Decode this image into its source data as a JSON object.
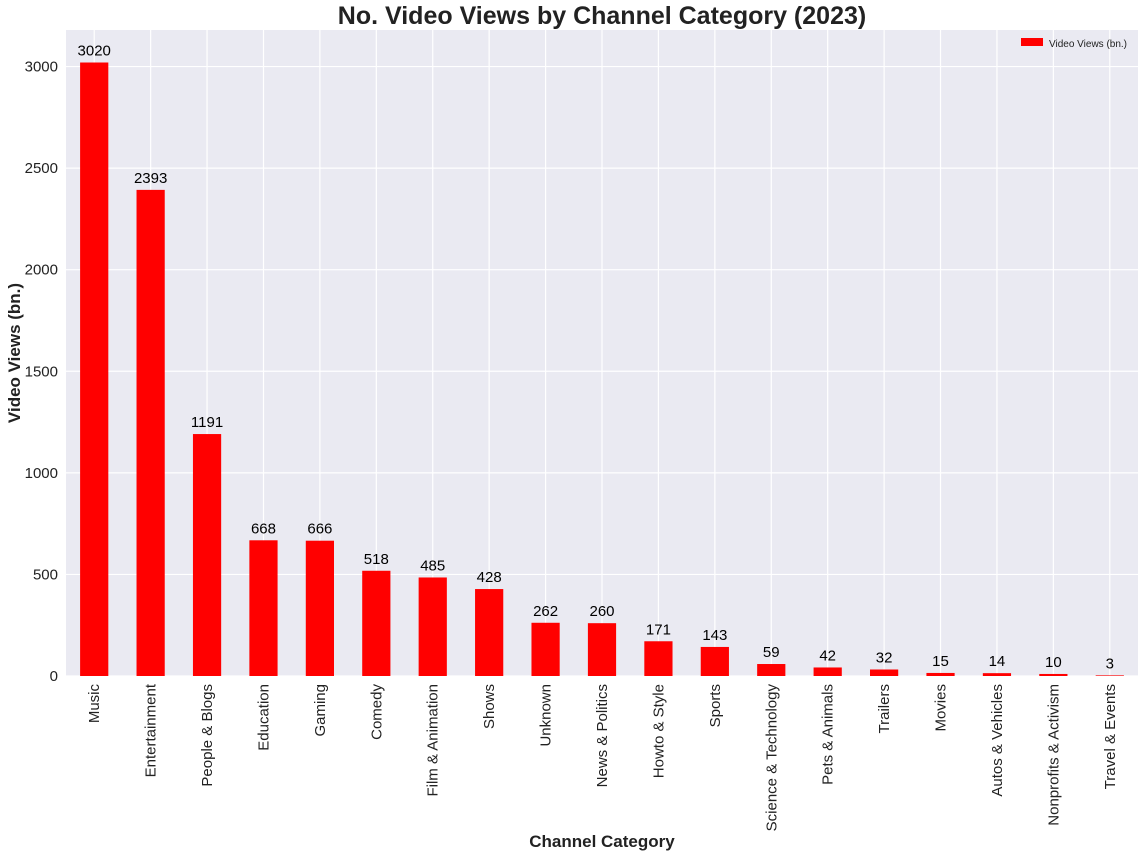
{
  "colors": {
    "bar": "#ff0000",
    "plot_background": "#eaeaf2",
    "grid": "#ffffff"
  },
  "chart_data": {
    "type": "bar",
    "title": "No. Video Views by Channel Category (2023)",
    "xlabel": "Channel Category",
    "ylabel": "Video Views (bn.)",
    "ylim": [
      0,
      3180
    ],
    "yticks": [
      0,
      500,
      1000,
      1500,
      2000,
      2500,
      3000
    ],
    "grid": true,
    "legend": {
      "position": "top-right",
      "entries": [
        "Video Views (bn.)"
      ]
    },
    "categories": [
      "Music",
      "Entertainment",
      "People & Blogs",
      "Education",
      "Gaming",
      "Comedy",
      "Film & Animation",
      "Shows",
      "Unknown",
      "News & Politics",
      "Howto & Style",
      "Sports",
      "Science & Technology",
      "Pets & Animals",
      "Trailers",
      "Movies",
      "Autos & Vehicles",
      "Nonprofits & Activism",
      "Travel & Events"
    ],
    "series": [
      {
        "name": "Video Views (bn.)",
        "values": [
          3020,
          2393,
          1191,
          668,
          666,
          518,
          485,
          428,
          262,
          260,
          171,
          143,
          59,
          42,
          32,
          15,
          14,
          10,
          3
        ]
      }
    ]
  }
}
